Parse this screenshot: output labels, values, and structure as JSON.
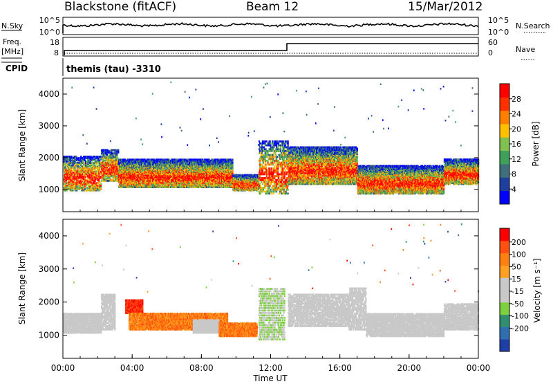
{
  "header": {
    "title": "Blackstone (fitACF)",
    "beam": "Beam 12",
    "date": "15/Mar/2012"
  },
  "top_panels": {
    "nsky_label": "N.Sky",
    "nsky_ticks": [
      "10^5",
      "10^0"
    ],
    "nsearch_label": "N.Search",
    "nsearch_ticks": [
      "10^5",
      "10^0"
    ],
    "freq_label": "Freq.",
    "freq_unit": "[MHz]",
    "freq_ticks": [
      "18",
      "8"
    ],
    "nave_label": "Nave",
    "nave_ticks": [
      "60",
      "0"
    ],
    "cpid_label": "CPID",
    "cpid_value": "themis (tau) -3310"
  },
  "colors": {
    "power_scale": [
      "#0000ff",
      "#1e3fa0",
      "#3f6f7a",
      "#3fa05a",
      "#7fc050",
      "#ffc000",
      "#ff8000",
      "#ff3000",
      "#ff0000"
    ],
    "velocity_scale": [
      "#1f3fa8",
      "#2f6fb0",
      "#2f8f6f",
      "#7fd040",
      "#c8c8c8",
      "#c8c8c8",
      "#ffa020",
      "#ff8010",
      "#ff5010",
      "#ff0000"
    ],
    "ground_scatter": "#c8c8c8"
  },
  "chart_data": [
    {
      "type": "heatmap",
      "name": "power",
      "ylabel": "Slant Range [km]",
      "yticks": [
        1000,
        2000,
        3000,
        4000
      ],
      "ylim": [
        300,
        4500
      ],
      "xlim": [
        0,
        24
      ],
      "colorbar_label": "Power [dB]",
      "colorbar_ticks": [
        4,
        8,
        12,
        16,
        20,
        24,
        28
      ],
      "colorbar_range": [
        0,
        32
      ],
      "grid": false,
      "bands": [
        {
          "t0": 0.0,
          "t1": 2.2,
          "r_lo": 1000,
          "r_hi": 2100,
          "density": 0.55
        },
        {
          "t0": 2.2,
          "t1": 3.2,
          "r_lo": 1300,
          "r_hi": 2300,
          "density": 0.6
        },
        {
          "t0": 3.2,
          "t1": 9.8,
          "r_lo": 1100,
          "r_hi": 2000,
          "density": 0.75
        },
        {
          "t0": 9.8,
          "t1": 11.3,
          "r_lo": 1000,
          "r_hi": 1500,
          "density": 0.7
        },
        {
          "t0": 11.3,
          "t1": 13.0,
          "r_lo": 900,
          "r_hi": 2600,
          "density": 0.5
        },
        {
          "t0": 13.0,
          "t1": 17.0,
          "r_lo": 1200,
          "r_hi": 2400,
          "density": 0.8
        },
        {
          "t0": 17.0,
          "t1": 22.0,
          "r_lo": 900,
          "r_hi": 1800,
          "density": 0.75
        },
        {
          "t0": 22.0,
          "t1": 24.0,
          "r_lo": 1200,
          "r_hi": 2000,
          "density": 0.7
        }
      ]
    },
    {
      "type": "heatmap",
      "name": "velocity",
      "ylabel": "Slant Range [km]",
      "yticks": [
        1000,
        2000,
        3000,
        4000
      ],
      "ylim": [
        300,
        4500
      ],
      "xlim": [
        0,
        24
      ],
      "xticks": [
        "00:00",
        "04:00",
        "08:00",
        "12:00",
        "16:00",
        "20:00",
        "00:00"
      ],
      "xlabel": "Time UT",
      "colorbar_label": "Velocity [m s⁻¹]",
      "colorbar_ticks": [
        200,
        100,
        50,
        15,
        -15,
        -50,
        -100,
        -200
      ],
      "grid": false,
      "regions": [
        {
          "t0": 0.0,
          "t1": 2.2,
          "r_lo": 1100,
          "r_hi": 1700,
          "kind": "ground"
        },
        {
          "t0": 2.2,
          "t1": 3.0,
          "r_lo": 1200,
          "r_hi": 2300,
          "kind": "ground"
        },
        {
          "t0": 3.6,
          "t1": 4.6,
          "r_lo": 1700,
          "r_hi": 2100,
          "kind": "red"
        },
        {
          "t0": 3.8,
          "t1": 9.5,
          "r_lo": 1200,
          "r_hi": 1700,
          "kind": "orange"
        },
        {
          "t0": 7.5,
          "t1": 9.0,
          "r_lo": 1100,
          "r_hi": 1500,
          "kind": "ground"
        },
        {
          "t0": 9.0,
          "t1": 11.2,
          "r_lo": 1000,
          "r_hi": 1400,
          "kind": "orange"
        },
        {
          "t0": 11.3,
          "t1": 12.8,
          "r_lo": 900,
          "r_hi": 2500,
          "kind": "green"
        },
        {
          "t0": 13.0,
          "t1": 16.5,
          "r_lo": 1300,
          "r_hi": 2300,
          "kind": "ground"
        },
        {
          "t0": 16.5,
          "t1": 17.5,
          "r_lo": 1200,
          "r_hi": 2500,
          "kind": "ground"
        },
        {
          "t0": 17.5,
          "t1": 22.0,
          "r_lo": 1000,
          "r_hi": 1700,
          "kind": "ground"
        },
        {
          "t0": 22.0,
          "t1": 24.0,
          "r_lo": 1200,
          "r_hi": 2000,
          "kind": "ground"
        }
      ]
    }
  ]
}
